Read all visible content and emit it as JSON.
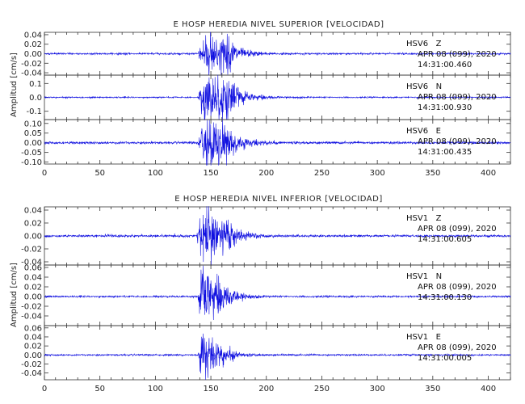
{
  "chart_data": [
    {
      "type": "line",
      "title": "E HOSP HEREDIA NIVEL SUPERIOR [VELOCIDAD]",
      "ylabel": "Amplitud [cm/s]",
      "xlim": [
        0,
        420
      ],
      "xticks": [
        "0",
        "50",
        "100",
        "150",
        "200",
        "250",
        "300",
        "350",
        "400"
      ],
      "series": [
        {
          "name": "HSV6 Z",
          "station": "HSV6   Z",
          "date": "APR 08 (099), 2020",
          "time": "14:31:00.460",
          "ylim": [
            -0.045,
            0.045
          ],
          "yticks": [
            "0.04",
            "0.02",
            "0.00",
            "-0.02",
            "-0.04"
          ],
          "yvalues": [
            0.04,
            0.02,
            0.0,
            -0.02,
            -0.04
          ],
          "peak": 0.04,
          "noise": 0.0015,
          "onset": 138,
          "peak_time": 147,
          "decay": 18,
          "secondary": 0.25
        },
        {
          "name": "HSV6 N",
          "station": "HSV6   N",
          "date": "APR 08 (099), 2020",
          "time": "14:31:00.930",
          "ylim": [
            -0.16,
            0.16
          ],
          "yticks": [
            "0.1",
            "0.0",
            "-0.1"
          ],
          "yvalues": [
            0.1,
            0.0,
            -0.1
          ],
          "peak": 0.15,
          "noise": 0.004,
          "onset": 138,
          "peak_time": 145,
          "decay": 20,
          "secondary": 0.55
        },
        {
          "name": "HSV6 E",
          "station": "HSV6   E",
          "date": "APR 08 (099), 2020",
          "time": "14:31:00.435",
          "ylim": [
            -0.11,
            0.12
          ],
          "yticks": [
            "0.10",
            "0.05",
            "0.00",
            "-0.05",
            "-0.10"
          ],
          "yvalues": [
            0.1,
            0.05,
            0.0,
            -0.05,
            -0.1
          ],
          "peak": 0.11,
          "noise": 0.005,
          "onset": 138,
          "peak_time": 145,
          "decay": 20,
          "secondary": 0.45
        }
      ]
    },
    {
      "type": "line",
      "title": "E HOSP HEREDIA NIVEL INFERIOR [VELOCIDAD]",
      "ylabel": "Amplitud [cm/s]",
      "xlim": [
        0,
        420
      ],
      "xticks": [
        "0",
        "50",
        "100",
        "150",
        "200",
        "250",
        "300",
        "350",
        "400"
      ],
      "series": [
        {
          "name": "HSV1 Z",
          "station": "HSV1   Z",
          "date": "APR 08 (099), 2020",
          "time": "14:31:00.605",
          "ylim": [
            -0.045,
            0.045
          ],
          "yticks": [
            "0.04",
            "0.02",
            "0.00",
            "-0.02",
            "-0.04"
          ],
          "yvalues": [
            0.04,
            0.02,
            0.0,
            -0.02,
            -0.04
          ],
          "peak": 0.04,
          "noise": 0.0015,
          "onset": 137,
          "peak_time": 145,
          "decay": 16,
          "secondary": 0.2
        },
        {
          "name": "HSV1 N",
          "station": "HSV1   N",
          "date": "APR 08 (099), 2020",
          "time": "14:31:00.130",
          "ylim": [
            -0.06,
            0.065
          ],
          "yticks": [
            "0.06",
            "0.04",
            "0.02",
            "0.00",
            "-0.02",
            "-0.04"
          ],
          "yvalues": [
            0.06,
            0.04,
            0.02,
            0.0,
            -0.02,
            -0.04
          ],
          "peak": 0.05,
          "noise": 0.0015,
          "onset": 138,
          "peak_time": 143,
          "decay": 15,
          "secondary": 0.15
        },
        {
          "name": "HSV1 E",
          "station": "HSV1   E",
          "date": "APR 08 (099), 2020",
          "time": "14:31:00.005",
          "ylim": [
            -0.055,
            0.065
          ],
          "yticks": [
            "0.06",
            "0.04",
            "0.02",
            "0.00",
            "-0.02",
            "-0.04"
          ],
          "yvalues": [
            0.06,
            0.04,
            0.02,
            0.0,
            -0.02,
            -0.04
          ],
          "peak": 0.045,
          "noise": 0.0015,
          "onset": 138,
          "peak_time": 143,
          "decay": 14,
          "secondary": 0.12
        }
      ]
    }
  ]
}
